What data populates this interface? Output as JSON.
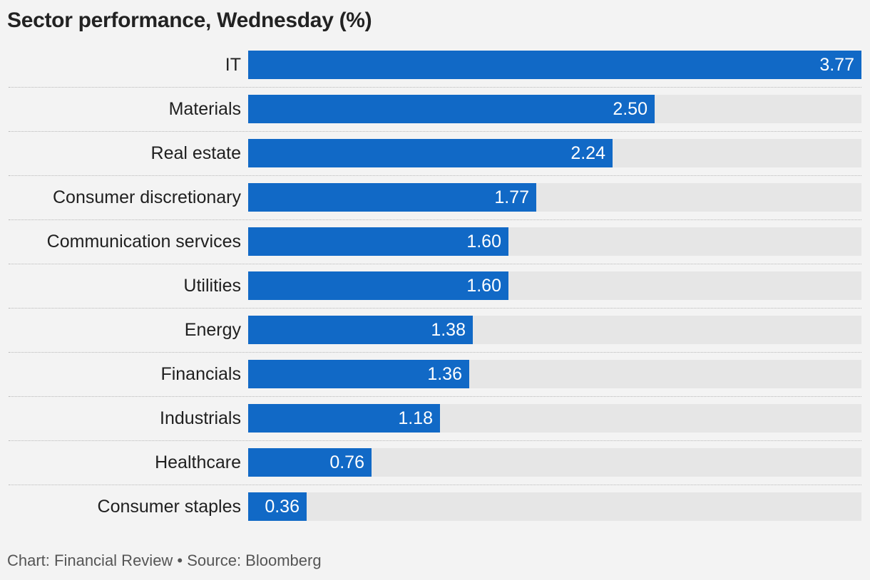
{
  "chart_data": {
    "type": "bar",
    "orientation": "horizontal",
    "title": "Sector performance, Wednesday (%)",
    "categories": [
      "IT",
      "Materials",
      "Real estate",
      "Consumer discretionary",
      "Communication services",
      "Utilities",
      "Energy",
      "Financials",
      "Industrials",
      "Healthcare",
      "Consumer staples"
    ],
    "values": [
      3.77,
      2.5,
      2.24,
      1.77,
      1.6,
      1.6,
      1.38,
      1.36,
      1.18,
      0.76,
      0.36
    ],
    "value_labels": [
      "3.77",
      "2.50",
      "2.24",
      "1.77",
      "1.60",
      "1.60",
      "1.38",
      "1.36",
      "1.18",
      "0.76",
      "0.36"
    ],
    "xlim": [
      0,
      3.77
    ],
    "bar_color": "#1169c6",
    "track_color": "#e6e6e6",
    "grid": false
  },
  "footer": "Chart: Financial Review • Source: Bloomberg"
}
